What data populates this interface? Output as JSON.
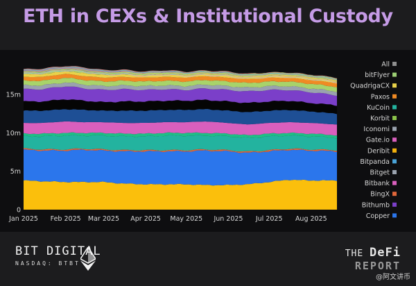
{
  "title": "ETH in CEXs & Institutional Custody",
  "footer": {
    "company_name": "BIT DIGITAL",
    "company_ticker": "NASDAQ: BTBT",
    "report_line1_a": "THE ",
    "report_line1_b": "DeFi",
    "report_line2": "REPORT",
    "watermark": "@阿文讲币"
  },
  "colors": {
    "background": "#1c1c1e",
    "plot_background": "#0e0e10",
    "title": "#c59be6"
  },
  "chart_data": {
    "type": "area",
    "stacked": true,
    "title": "ETH in CEXs & Institutional Custody",
    "xlabel": "",
    "ylabel": "",
    "x_ticks": [
      "Jan 2025",
      "Feb 2025",
      "Mar 2025",
      "Apr 2025",
      "May 2025",
      "Jun 2025",
      "Jul 2025",
      "Aug 2025"
    ],
    "x_tick_dates": [
      "2025-01-01",
      "2025-02-01",
      "2025-03-01",
      "2025-04-01",
      "2025-05-01",
      "2025-06-01",
      "2025-07-01",
      "2025-08-01"
    ],
    "x_range": [
      "2025-01-01",
      "2025-08-20"
    ],
    "y_ticks": [
      0,
      5000000,
      10000000,
      15000000
    ],
    "y_tick_labels": [
      "0",
      "5m",
      "10m",
      "15m"
    ],
    "ylim": [
      0,
      19000000
    ],
    "grid": false,
    "legend_placement": "right",
    "legend_entries": [
      "All",
      "bitFlyer",
      "QuadrigaCX",
      "Paxos",
      "KuCoin",
      "Korbit",
      "Iconomi",
      "Gate.io",
      "Deribit",
      "Bitpanda",
      "Bitget",
      "Bitbank",
      "BingX",
      "Bithumb",
      "Copper"
    ],
    "x": [
      "2025-01-01",
      "2025-01-15",
      "2025-02-01",
      "2025-02-15",
      "2025-03-01",
      "2025-03-15",
      "2025-04-01",
      "2025-04-15",
      "2025-05-01",
      "2025-05-15",
      "2025-06-01",
      "2025-06-15",
      "2025-07-01",
      "2025-07-15",
      "2025-08-01",
      "2025-08-20"
    ],
    "totals": [
      18.3,
      18.4,
      18.7,
      18.5,
      18.2,
      18.2,
      18.0,
      18.1,
      18.0,
      18.2,
      18.0,
      17.8,
      18.0,
      18.1,
      17.7,
      17.2
    ],
    "series": [
      {
        "name": "Copper",
        "color": "#fbbf0c",
        "values": [
          3.8,
          3.7,
          3.6,
          3.6,
          3.6,
          3.4,
          3.3,
          3.3,
          3.3,
          3.2,
          3.2,
          3.3,
          3.6,
          3.9,
          3.8,
          3.8
        ]
      },
      {
        "name": "Bithumb",
        "color": "#2b76ec",
        "values": [
          4.0,
          4.0,
          4.1,
          4.2,
          4.1,
          4.2,
          4.3,
          4.3,
          4.3,
          4.5,
          4.4,
          4.1,
          4.0,
          3.9,
          3.9,
          3.8
        ]
      },
      {
        "name": "BingX",
        "color": "#e0663a",
        "values": [
          0.15,
          0.15,
          0.15,
          0.15,
          0.15,
          0.15,
          0.15,
          0.15,
          0.15,
          0.15,
          0.15,
          0.15,
          0.15,
          0.15,
          0.15,
          0.15
        ]
      },
      {
        "name": "Bitbank",
        "color": "#23b39f",
        "values": [
          1.6,
          1.7,
          1.8,
          1.7,
          1.8,
          1.8,
          1.8,
          1.9,
          1.9,
          1.8,
          1.8,
          1.8,
          1.8,
          1.7,
          1.7,
          1.6
        ]
      },
      {
        "name": "Bitget",
        "color": "#1fbf86",
        "values": [
          0.35,
          0.35,
          0.35,
          0.35,
          0.35,
          0.35,
          0.35,
          0.35,
          0.35,
          0.35,
          0.35,
          0.35,
          0.35,
          0.35,
          0.35,
          0.35
        ]
      },
      {
        "name": "Bitpanda",
        "color": "#d95fbd",
        "values": [
          1.4,
          1.4,
          1.5,
          1.4,
          1.4,
          1.4,
          1.4,
          1.4,
          1.4,
          1.5,
          1.4,
          1.4,
          1.4,
          1.4,
          1.4,
          1.4
        ]
      },
      {
        "name": "Deribit",
        "color": "#1e4f95",
        "values": [
          1.6,
          1.6,
          1.6,
          1.6,
          1.5,
          1.6,
          1.6,
          1.6,
          1.6,
          1.6,
          1.6,
          1.6,
          1.6,
          1.6,
          1.5,
          1.4
        ]
      },
      {
        "name": "Gate.io",
        "color": "#050505",
        "values": [
          1.2,
          1.2,
          1.3,
          1.2,
          1.1,
          1.2,
          1.2,
          1.2,
          1.2,
          1.2,
          1.2,
          1.2,
          1.2,
          1.2,
          1.1,
          1.1
        ]
      },
      {
        "name": "Iconomi",
        "color": "#7b3fc9",
        "values": [
          1.6,
          1.6,
          1.7,
          1.6,
          1.6,
          1.6,
          1.5,
          1.5,
          1.4,
          1.5,
          1.5,
          1.5,
          1.5,
          1.4,
          1.4,
          1.3
        ]
      },
      {
        "name": "Korbit",
        "color": "#9aa2ae",
        "values": [
          0.5,
          0.5,
          0.5,
          0.5,
          0.5,
          0.5,
          0.5,
          0.5,
          0.5,
          0.5,
          0.5,
          0.5,
          0.5,
          0.5,
          0.5,
          0.5
        ]
      },
      {
        "name": "KuCoin",
        "color": "#a8d36a",
        "values": [
          0.6,
          0.6,
          0.6,
          0.6,
          0.6,
          0.6,
          0.6,
          0.6,
          0.6,
          0.6,
          0.6,
          0.6,
          0.6,
          0.6,
          0.6,
          0.6
        ]
      },
      {
        "name": "Paxos",
        "color": "#f08a24",
        "values": [
          0.5,
          0.5,
          0.5,
          0.5,
          0.5,
          0.5,
          0.5,
          0.5,
          0.5,
          0.5,
          0.5,
          0.5,
          0.5,
          0.5,
          0.5,
          0.5
        ]
      },
      {
        "name": "QuadrigaCX",
        "color": "#e8d24a",
        "values": [
          0.35,
          0.35,
          0.35,
          0.35,
          0.35,
          0.35,
          0.35,
          0.35,
          0.35,
          0.35,
          0.35,
          0.35,
          0.35,
          0.35,
          0.35,
          0.35
        ]
      },
      {
        "name": "bitFlyer",
        "color": "#9ccf74",
        "values": [
          0.3,
          0.3,
          0.3,
          0.3,
          0.3,
          0.3,
          0.3,
          0.3,
          0.3,
          0.3,
          0.3,
          0.3,
          0.3,
          0.3,
          0.3,
          0.3
        ]
      },
      {
        "name": "All",
        "color": "#8f8f8f",
        "values": [
          0.34,
          0.44,
          0.39,
          0.49,
          0.34,
          0.29,
          0.14,
          0.24,
          0.14,
          0.09,
          0.14,
          0.04,
          0.04,
          0.04,
          0.04,
          0.04
        ]
      }
    ],
    "legend_markers": {
      "All": "#8f8f8f",
      "bitFlyer": "#9ccf74",
      "QuadrigaCX": "#e8d24a",
      "Paxos": "#f08a24",
      "KuCoin": "#23b39f",
      "Korbit": "#8bc34a",
      "Iconomi": "#9aa2ae",
      "Gate.io": "#d95fbd",
      "Deribit": "#f3b10d",
      "Bitpanda": "#4aa3d8",
      "Bitget": "#9aa2ae",
      "Bitbank": "#d95fbd",
      "BingX": "#e0663a",
      "Bithumb": "#7b3fc9",
      "Copper": "#2b76ec"
    },
    "extra_bands": [
      "#ff6b6b",
      "#4dd0e1",
      "#ba68c8",
      "#ffd54f",
      "#81c784",
      "#f48fb1",
      "#90caf9",
      "#ffb74d"
    ]
  }
}
